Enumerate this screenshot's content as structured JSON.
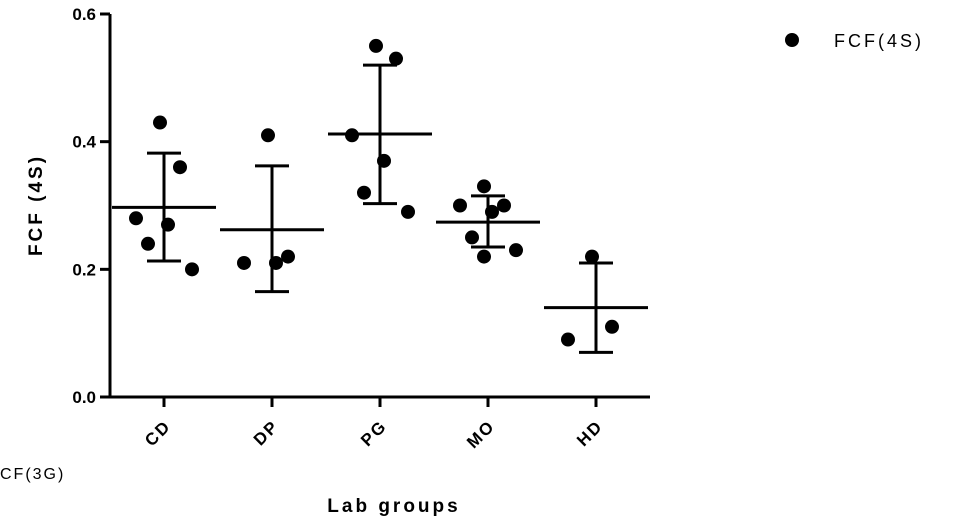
{
  "chart_data": {
    "type": "scatter",
    "ylabel": "FCF (4S)",
    "xlabel": "Lab groups",
    "ylim": [
      0,
      0.6
    ],
    "yticks": [
      "0.0",
      "0.2",
      "0.4",
      "0.6"
    ],
    "categories": [
      "CD",
      "DP",
      "PG",
      "MO",
      "HD"
    ],
    "legend": {
      "position": "top-right",
      "entries": [
        "FCF(4S)"
      ]
    },
    "annotation": "CF(3G)",
    "groups": [
      {
        "category": "CD",
        "points": [
          0.43,
          0.36,
          0.28,
          0.27,
          0.24,
          0.2
        ],
        "mean": 0.297,
        "sd_upper": 0.382,
        "sd_lower": 0.213
      },
      {
        "category": "DP",
        "points": [
          0.41,
          0.22,
          0.21,
          0.21
        ],
        "mean": 0.262,
        "sd_upper": 0.362,
        "sd_lower": 0.165
      },
      {
        "category": "PG",
        "points": [
          0.55,
          0.53,
          0.41,
          0.37,
          0.32,
          0.29
        ],
        "mean": 0.412,
        "sd_upper": 0.52,
        "sd_lower": 0.303
      },
      {
        "category": "MO",
        "points": [
          0.33,
          0.3,
          0.3,
          0.29,
          0.25,
          0.23,
          0.22
        ],
        "mean": 0.274,
        "sd_upper": 0.315,
        "sd_lower": 0.235
      },
      {
        "category": "HD",
        "points": [
          0.22,
          0.11,
          0.09
        ],
        "mean": 0.14,
        "sd_upper": 0.21,
        "sd_lower": 0.07
      }
    ],
    "grid": false
  }
}
